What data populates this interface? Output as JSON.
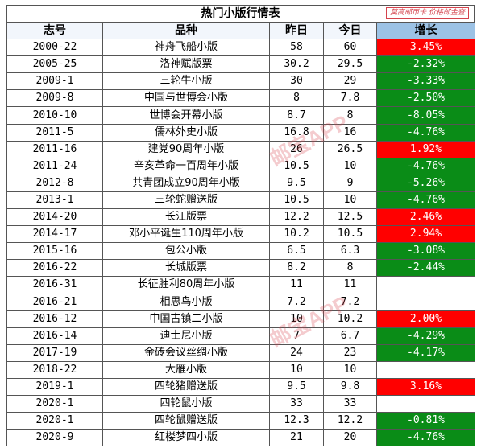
{
  "title": "热门小版行情表",
  "watermark_corner": "莫高邮币卡 价格邮金查",
  "watermark": "邮宝APP",
  "headers": {
    "code": "志号",
    "name": "品种",
    "yesterday": "昨日",
    "today": "今日",
    "growth": "增长"
  },
  "colors": {
    "up": "#ff0000",
    "down": "#0a8c17"
  },
  "rows": [
    {
      "code": "2000-22",
      "name": "神舟飞船小版",
      "yesterday": "58",
      "today": "60",
      "growth": "3.45%",
      "dir": "up"
    },
    {
      "code": "2005-25",
      "name": "洛神赋版票",
      "yesterday": "30.2",
      "today": "29.5",
      "growth": "-2.32%",
      "dir": "down"
    },
    {
      "code": "2009-1",
      "name": "三轮牛小版",
      "yesterday": "30",
      "today": "29",
      "growth": "-3.33%",
      "dir": "down"
    },
    {
      "code": "2009-8",
      "name": "中国与世博会小版",
      "yesterday": "8",
      "today": "7.8",
      "growth": "-2.50%",
      "dir": "down"
    },
    {
      "code": "2010-10",
      "name": "世博会开幕小版",
      "yesterday": "8.7",
      "today": "8",
      "growth": "-8.05%",
      "dir": "down"
    },
    {
      "code": "2011-5",
      "name": "儒林外史小版",
      "yesterday": "16.8",
      "today": "16",
      "growth": "-4.76%",
      "dir": "down"
    },
    {
      "code": "2011-16",
      "name": "建党90周年小版",
      "yesterday": "26",
      "today": "26.5",
      "growth": "1.92%",
      "dir": "up"
    },
    {
      "code": "2011-24",
      "name": "辛亥革命一百周年小版",
      "yesterday": "10.5",
      "today": "10",
      "growth": "-4.76%",
      "dir": "down"
    },
    {
      "code": "2012-8",
      "name": "共青团成立90周年小版",
      "yesterday": "9.5",
      "today": "9",
      "growth": "-5.26%",
      "dir": "down"
    },
    {
      "code": "2013-1",
      "name": "三轮蛇赠送版",
      "yesterday": "10.5",
      "today": "10",
      "growth": "-4.76%",
      "dir": "down"
    },
    {
      "code": "2014-20",
      "name": "长江版票",
      "yesterday": "12.2",
      "today": "12.5",
      "growth": "2.46%",
      "dir": "up"
    },
    {
      "code": "2014-17",
      "name": "邓小平诞生110周年小版",
      "yesterday": "10.2",
      "today": "10.5",
      "growth": "2.94%",
      "dir": "up"
    },
    {
      "code": "2015-16",
      "name": "包公小版",
      "yesterday": "6.5",
      "today": "6.3",
      "growth": "-3.08%",
      "dir": "down"
    },
    {
      "code": "2016-22",
      "name": "长城版票",
      "yesterday": "8.2",
      "today": "8",
      "growth": "-2.44%",
      "dir": "down"
    },
    {
      "code": "2016-31",
      "name": "长征胜利80周年小版",
      "yesterday": "11",
      "today": "11",
      "growth": "",
      "dir": "none"
    },
    {
      "code": "2016-21",
      "name": "相思鸟小版",
      "yesterday": "7.2",
      "today": "7.2",
      "growth": "",
      "dir": "none"
    },
    {
      "code": "2016-12",
      "name": "中国古镇二小版",
      "yesterday": "10",
      "today": "10.2",
      "growth": "2.00%",
      "dir": "up"
    },
    {
      "code": "2016-14",
      "name": "迪士尼小版",
      "yesterday": "7",
      "today": "6.7",
      "growth": "-4.29%",
      "dir": "down"
    },
    {
      "code": "2017-19",
      "name": "金砖会议丝绸小版",
      "yesterday": "24",
      "today": "23",
      "growth": "-4.17%",
      "dir": "down"
    },
    {
      "code": "2018-22",
      "name": "大雁小版",
      "yesterday": "10",
      "today": "10",
      "growth": "",
      "dir": "none"
    },
    {
      "code": "2019-1",
      "name": "四轮猪赠送版",
      "yesterday": "9.5",
      "today": "9.8",
      "growth": "3.16%",
      "dir": "up"
    },
    {
      "code": "2020-1",
      "name": "四轮鼠小版",
      "yesterday": "33",
      "today": "33",
      "growth": "",
      "dir": "none"
    },
    {
      "code": "2020-1",
      "name": "四轮鼠赠送版",
      "yesterday": "12.3",
      "today": "12.2",
      "growth": "-0.81%",
      "dir": "down"
    },
    {
      "code": "2020-9",
      "name": "红楼梦四小版",
      "yesterday": "21",
      "today": "20",
      "growth": "-4.76%",
      "dir": "down"
    }
  ]
}
